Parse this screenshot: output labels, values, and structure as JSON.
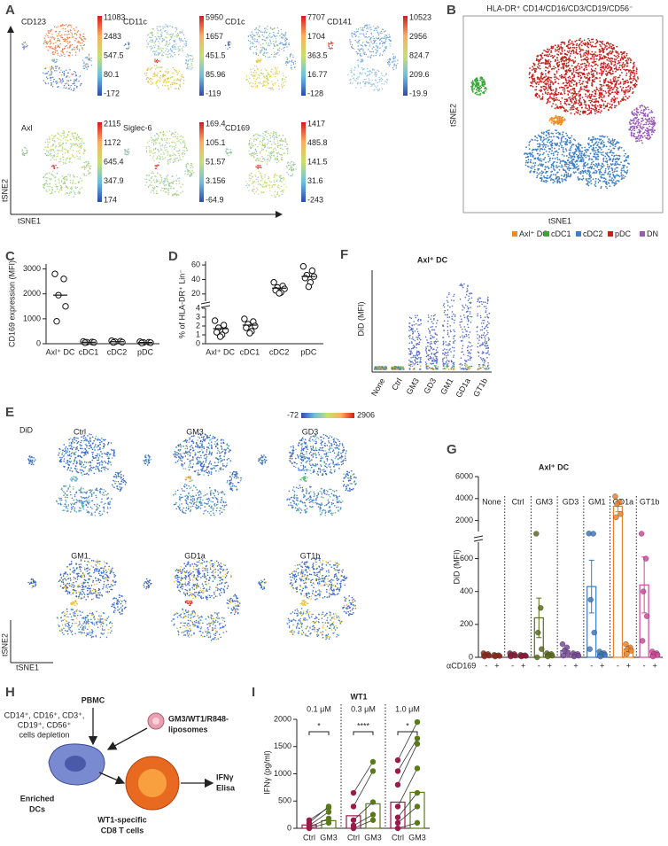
{
  "panel_labels": [
    "A",
    "B",
    "C",
    "D",
    "E",
    "F",
    "G",
    "H",
    "I"
  ],
  "A": {
    "y_axis": "tSNE2",
    "x_axis": "tSNE1",
    "maps": [
      {
        "marker": "CD123",
        "scale": [
          11083,
          2483,
          547.5,
          80.1,
          -172
        ]
      },
      {
        "marker": "CD11c",
        "scale": [
          5950,
          1657,
          451.5,
          85.96,
          -119
        ]
      },
      {
        "marker": "CD1c",
        "scale": [
          7707,
          1704,
          363.5,
          16.77,
          -128
        ]
      },
      {
        "marker": "CD141",
        "scale": [
          10523,
          2956,
          824.7,
          209.6,
          -19.9
        ]
      },
      {
        "marker": "Axl",
        "scale": [
          2115,
          1172,
          645.4,
          347.9,
          174
        ]
      },
      {
        "marker": "Siglec-6",
        "scale": [
          169.4,
          105.1,
          51.57,
          3.156,
          -64.9
        ]
      },
      {
        "marker": "CD169",
        "scale": [
          1417,
          485.8,
          141.5,
          31.6,
          -243
        ]
      }
    ]
  },
  "B": {
    "title": "HLA-DR⁺ CD14/CD16/CD3/CD19/CD56⁻",
    "y_axis": "tSNE2",
    "x_axis": "tSNE1",
    "legend": [
      {
        "name": "Axl⁺ DC",
        "color": "#f08a24"
      },
      {
        "name": "cDC1",
        "color": "#3aa63a"
      },
      {
        "name": "cDC2",
        "color": "#3f7fc4"
      },
      {
        "name": "pDC",
        "color": "#c8201c"
      },
      {
        "name": "DN",
        "color": "#9a5ab8"
      }
    ]
  },
  "C": {
    "type": "scatter",
    "ylabel": "CD169 expression (MFI)",
    "categories": [
      "Axl⁺ DC",
      "cDC1",
      "cDC2",
      "pDC"
    ],
    "points": [
      [
        2800,
        2600,
        1950,
        1500,
        900
      ],
      [
        90,
        70,
        60,
        50,
        40
      ],
      [
        120,
        100,
        80,
        60,
        50
      ],
      [
        80,
        60,
        50,
        40,
        30
      ]
    ],
    "medians": [
      1950,
      60,
      80,
      50
    ],
    "ylim": [
      0,
      3200
    ],
    "yticks": [
      0,
      1000,
      2000,
      3000
    ]
  },
  "D": {
    "type": "scatter",
    "ylabel": "% of HLA-DR⁺ Lin⁻",
    "categories": [
      "Axl⁺ DC",
      "cDC1",
      "cDC2",
      "pDC"
    ],
    "points": [
      [
        2.6,
        2.1,
        1.8,
        1.5,
        1.3,
        1.0,
        0.8
      ],
      [
        2.8,
        2.5,
        2.2,
        2.0,
        1.8,
        1.4,
        1.2
      ],
      [
        36,
        31,
        29,
        27,
        25,
        22,
        21
      ],
      [
        58,
        52,
        46,
        44,
        42,
        36,
        30
      ]
    ],
    "medians": [
      1.7,
      2.1,
      28,
      44
    ],
    "ylim_low": [
      0,
      4
    ],
    "yticks_low": [
      0,
      1,
      2,
      3,
      4
    ],
    "ylim_high": [
      10,
      65
    ],
    "yticks_high": [
      20,
      40,
      60
    ]
  },
  "E": {
    "label": "DiD",
    "scale": [
      -72,
      2906
    ],
    "maps": [
      "Ctrl",
      "GM3",
      "GD3",
      "GM1",
      "GD1a",
      "GT1b"
    ],
    "y_axis": "tSNE2",
    "x_axis": "tSNE1"
  },
  "F": {
    "type": "strip",
    "title": "Axl⁺ DC",
    "ylabel": "DiD (MFI)",
    "categories": [
      "None",
      "Ctrl",
      "GM3",
      "GD3",
      "GM1",
      "GD1a",
      "GT1b"
    ],
    "values": [
      0.03,
      0.03,
      0.55,
      0.55,
      0.78,
      0.88,
      0.75
    ],
    "ylim": [
      0,
      1
    ]
  },
  "G": {
    "type": "bar",
    "title": "Axl⁺ DC",
    "ylabel": "DiD (MFI)",
    "xlabel": "αCD169",
    "groups": [
      "None",
      "Ctrl",
      "GM3",
      "GD3",
      "GM1",
      "GD1a",
      "GT1b"
    ],
    "treatments": [
      "-",
      "+"
    ],
    "colors": [
      "#8b2a1a",
      "#8b1a3a",
      "#5a6e1a",
      "#7a4a9a",
      "#3a7ac0",
      "#e8832a",
      "#d04a9a"
    ],
    "values": [
      [
        15,
        10
      ],
      [
        15,
        10
      ],
      [
        240,
        15
      ],
      [
        40,
        15
      ],
      [
        430,
        20
      ],
      [
        3300,
        50
      ],
      [
        440,
        20
      ]
    ],
    "errors": [
      [
        5,
        3
      ],
      [
        5,
        3
      ],
      [
        120,
        5
      ],
      [
        15,
        5
      ],
      [
        160,
        8
      ],
      [
        500,
        15
      ],
      [
        170,
        8
      ]
    ],
    "points": [
      [
        [
          25,
          20,
          15,
          10,
          5
        ],
        [
          15,
          12,
          10,
          8,
          5
        ]
      ],
      [
        [
          25,
          20,
          15,
          10,
          5
        ],
        [
          15,
          12,
          10,
          8,
          5
        ]
      ],
      [
        [
          800,
          300,
          150,
          50,
          0
        ],
        [
          25,
          20,
          15,
          10,
          5
        ]
      ],
      [
        [
          80,
          60,
          40,
          20,
          10
        ],
        [
          25,
          20,
          15,
          10,
          5
        ]
      ],
      [
        [
          820,
          800,
          350,
          150,
          50
        ],
        [
          35,
          25,
          20,
          15,
          5
        ]
      ],
      [
        [
          4200,
          3700,
          3500,
          2600,
          2300
        ],
        [
          80,
          60,
          50,
          40,
          20
        ]
      ],
      [
        [
          800,
          600,
          400,
          250,
          100
        ],
        [
          35,
          25,
          20,
          15,
          5
        ]
      ]
    ],
    "ylim_low": [
      0,
      700
    ],
    "yticks_low": [
      0,
      200,
      400,
      600
    ],
    "ylim_high": [
      1000,
      6000
    ],
    "yticks_high": [
      2000,
      4000,
      6000
    ]
  },
  "H": {
    "pbmc": "PBMC",
    "depletion": [
      "CD14⁺, CD16⁺, CD3⁺,",
      "CD19⁺, CD56⁺",
      "cells depletion"
    ],
    "liposomes": [
      "GM3/WT1/R848-",
      "liposomes"
    ],
    "dcs": [
      "Enriched",
      "DCs"
    ],
    "tcells": [
      "WT1-specific",
      "CD8 T cells"
    ],
    "readout": [
      "IFNγ",
      "Elisa"
    ]
  },
  "I": {
    "type": "bar",
    "title": "WT1",
    "ylabel": "IFNγ (pg/ml)",
    "groups": [
      "0.1 μM",
      "0.3 μM",
      "1.0 μM"
    ],
    "conditions": [
      "Ctrl",
      "GM3"
    ],
    "colors": [
      "#9a1a4a",
      "#5a7a1a"
    ],
    "values": [
      [
        60,
        140
      ],
      [
        230,
        450
      ],
      [
        480,
        660
      ]
    ],
    "pairs": [
      [
        [
          150,
          380
        ],
        [
          100,
          400
        ],
        [
          50,
          300
        ],
        [
          20,
          180
        ],
        [
          0,
          100
        ]
      ],
      [
        [
          650,
          1220
        ],
        [
          400,
          1050
        ],
        [
          150,
          480
        ],
        [
          50,
          250
        ],
        [
          0,
          150
        ]
      ],
      [
        [
          1250,
          1950
        ],
        [
          1050,
          1650
        ],
        [
          800,
          1550
        ],
        [
          400,
          1100
        ],
        [
          200,
          650
        ],
        [
          100,
          400
        ],
        [
          0,
          100
        ]
      ]
    ],
    "significance": [
      "*",
      "****",
      "*"
    ],
    "ylim": [
      0,
      2000
    ],
    "yticks": [
      0,
      500,
      1000,
      1500,
      2000
    ]
  }
}
